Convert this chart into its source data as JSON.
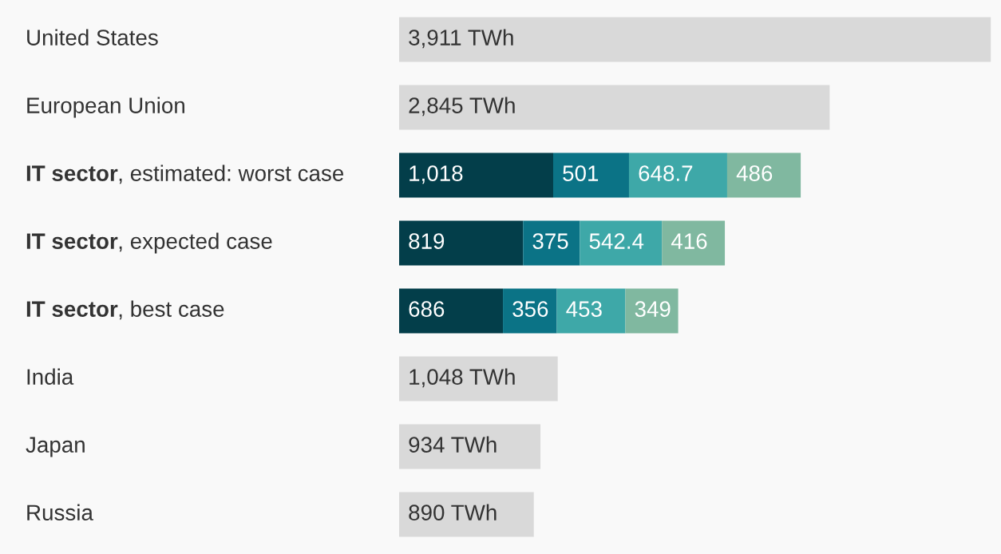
{
  "chart_data": {
    "type": "bar",
    "orientation": "horizontal",
    "stacked": true,
    "categories": [
      "United States",
      "European Union",
      "IT sector, estimated: worst case",
      "IT sector, expected case",
      "IT sector, best case",
      "India",
      "Japan",
      "Russia"
    ],
    "series": [
      {
        "color": "#d9d9d9",
        "values": [
          3911,
          2845,
          null,
          null,
          null,
          1048,
          934,
          890
        ],
        "value_labels": [
          "3,911 TWh",
          "2,845 TWh",
          null,
          null,
          null,
          "1,048 TWh",
          "934 TWh",
          "890 TWh"
        ]
      },
      {
        "color": "#033e4a",
        "values": [
          null,
          null,
          1018,
          819,
          686,
          null,
          null,
          null
        ],
        "value_labels": [
          null,
          null,
          "1,018",
          "819",
          "686",
          null,
          null,
          null
        ]
      },
      {
        "color": "#0b7386",
        "values": [
          null,
          null,
          501,
          375,
          356,
          null,
          null,
          null
        ],
        "value_labels": [
          null,
          null,
          "501",
          "375",
          "356",
          null,
          null,
          null
        ]
      },
      {
        "color": "#3ea8a8",
        "values": [
          null,
          null,
          648.7,
          542.4,
          453,
          null,
          null,
          null
        ],
        "value_labels": [
          null,
          null,
          "648.7",
          "542.4",
          "453",
          null,
          null,
          null
        ]
      },
      {
        "color": "#80b8a0",
        "values": [
          null,
          null,
          486,
          416,
          349,
          null,
          null,
          null
        ],
        "value_labels": [
          null,
          null,
          "486",
          "416",
          "349",
          null,
          null,
          null
        ]
      }
    ],
    "tick_labels": false,
    "grid": false
  }
}
